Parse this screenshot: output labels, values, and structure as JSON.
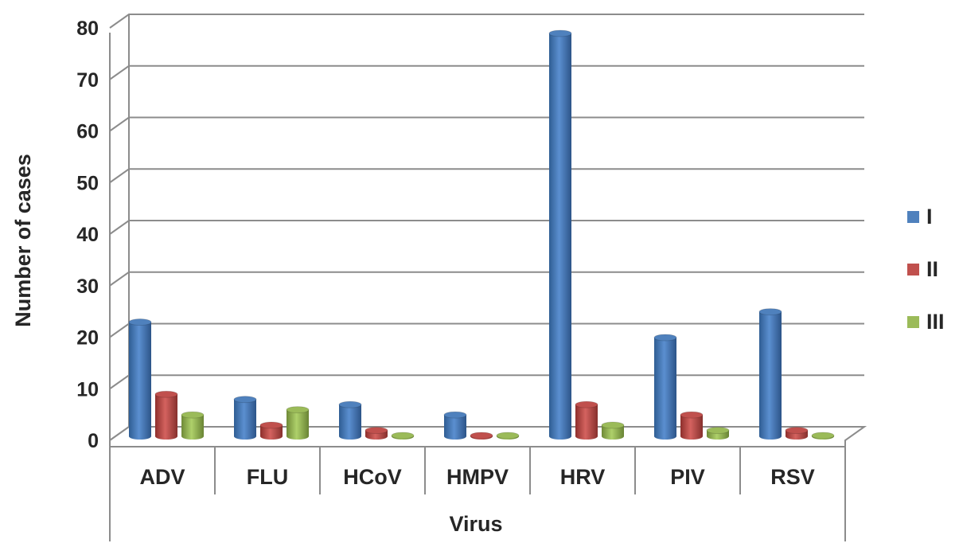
{
  "chart_data": {
    "type": "bar",
    "title": "",
    "xlabel": "Virus",
    "ylabel": "Number of cases",
    "categories": [
      "ADV",
      "FLU",
      "HCoV",
      "HMPV",
      "HRV",
      "PIV",
      "RSV"
    ],
    "series": [
      {
        "name": "I",
        "color": "#4f81bd",
        "values": [
          22,
          7,
          6,
          4,
          78,
          19,
          24
        ]
      },
      {
        "name": "II",
        "color": "#c0504d",
        "values": [
          8,
          2,
          1,
          0,
          6,
          4,
          1
        ]
      },
      {
        "name": "III",
        "color": "#9bbb59",
        "values": [
          4,
          5,
          0,
          0,
          2,
          1,
          0
        ]
      }
    ],
    "yticks": [
      "0",
      "10",
      "20",
      "30",
      "40",
      "50",
      "60",
      "70",
      "80"
    ],
    "ylim": [
      0,
      80
    ],
    "grid": true,
    "legend_position": "right",
    "style": "3d-cylinder"
  }
}
